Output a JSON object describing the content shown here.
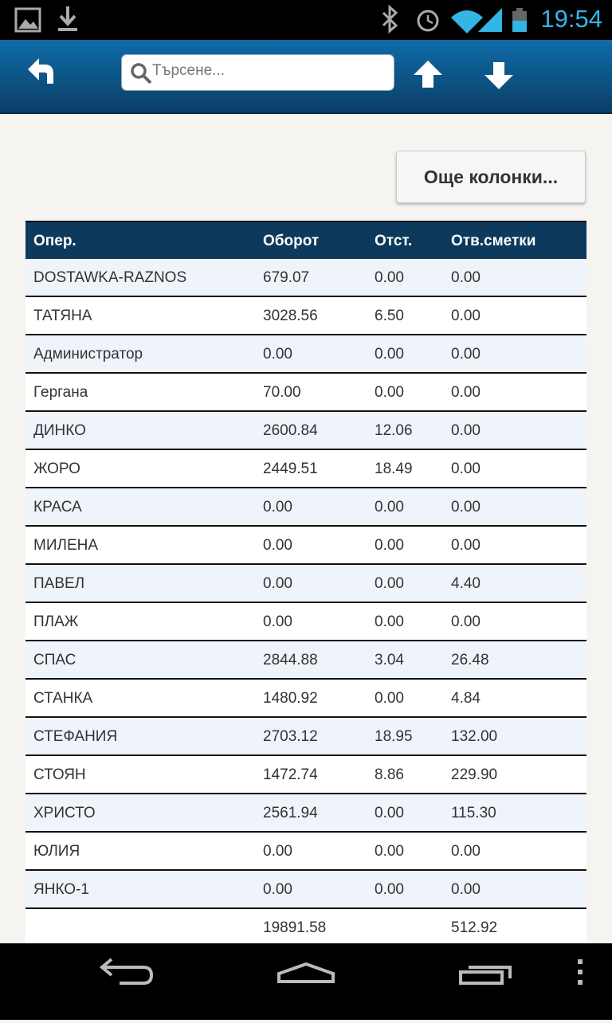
{
  "status_bar": {
    "time": "19:54"
  },
  "toolbar": {
    "search_placeholder": "Търсене..."
  },
  "more_columns_button": "Още колонки...",
  "table": {
    "headers": [
      "Опер.",
      "Оборот",
      "Отст.",
      "Отв.сметки"
    ],
    "rows": [
      [
        "DOSTAWKA-RAZNOS",
        "679.07",
        "0.00",
        "0.00"
      ],
      [
        "ТАТЯНА",
        "3028.56",
        "6.50",
        "0.00"
      ],
      [
        "Администратор",
        "0.00",
        "0.00",
        "0.00"
      ],
      [
        "Гергана",
        "70.00",
        "0.00",
        "0.00"
      ],
      [
        "ДИНКО",
        "2600.84",
        "12.06",
        "0.00"
      ],
      [
        "ЖОРО",
        "2449.51",
        "18.49",
        "0.00"
      ],
      [
        "КРАСА",
        "0.00",
        "0.00",
        "0.00"
      ],
      [
        "МИЛЕНА",
        "0.00",
        "0.00",
        "0.00"
      ],
      [
        "ПАВЕЛ",
        "0.00",
        "0.00",
        "4.40"
      ],
      [
        "ПЛАЖ",
        "0.00",
        "0.00",
        "0.00"
      ],
      [
        "СПАС",
        "2844.88",
        "3.04",
        "26.48"
      ],
      [
        "СТАНКА",
        "1480.92",
        "0.00",
        "4.84"
      ],
      [
        "СТЕФАНИЯ",
        "2703.12",
        "18.95",
        "132.00"
      ],
      [
        "СТОЯН",
        "1472.74",
        "8.86",
        "229.90"
      ],
      [
        "ХРИСТО",
        "2561.94",
        "0.00",
        "115.30"
      ],
      [
        "ЮЛИЯ",
        "0.00",
        "0.00",
        "0.00"
      ],
      [
        "ЯНКО-1",
        "0.00",
        "0.00",
        "0.00"
      ]
    ],
    "totals": {
      "turnover": "19891.58",
      "accounts": "512.92"
    }
  }
}
